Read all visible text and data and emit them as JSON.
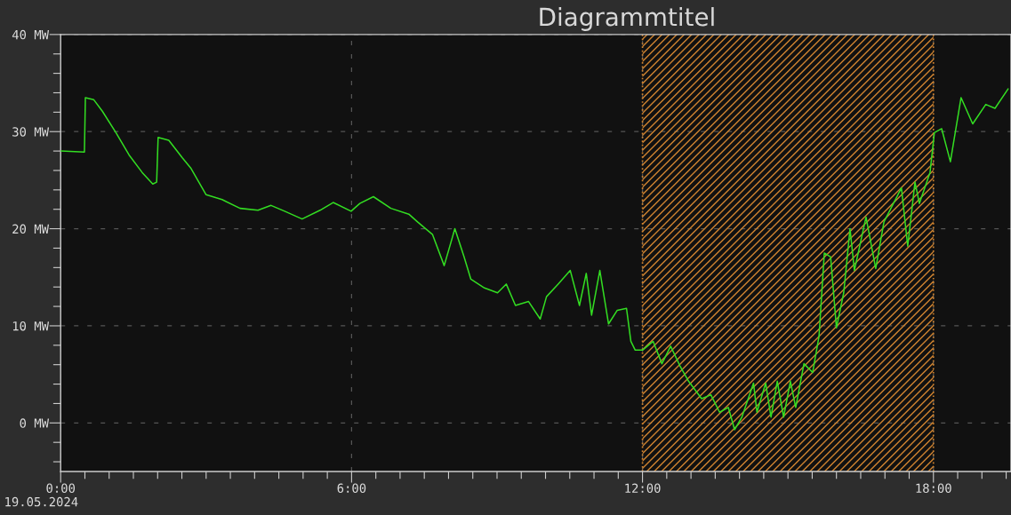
{
  "chart_data": {
    "type": "line",
    "title": "Diagrammtitel",
    "x": [
      0,
      0.49,
      0.51,
      0.68,
      0.86,
      1.14,
      1.41,
      1.68,
      1.9,
      1.98,
      2.01,
      2.23,
      2.51,
      2.69,
      3.0,
      3.33,
      3.7,
      4.07,
      4.34,
      4.62,
      4.98,
      5.35,
      5.62,
      5.99,
      6.17,
      6.45,
      6.81,
      7.18,
      7.36,
      7.67,
      7.91,
      8.13,
      8.32,
      8.46,
      8.74,
      9.01,
      9.19,
      9.38,
      9.65,
      9.89,
      10.02,
      10.26,
      10.51,
      10.7,
      10.84,
      10.95,
      11.12,
      11.3,
      11.48,
      11.67,
      11.76,
      11.85,
      12.0,
      12.22,
      12.4,
      12.58,
      12.77,
      12.95,
      13.22,
      13.41,
      13.59,
      13.77,
      13.9,
      14.05,
      14.29,
      14.36,
      14.54,
      14.65,
      14.78,
      14.91,
      15.05,
      15.16,
      15.33,
      15.51,
      15.64,
      15.75,
      15.88,
      16.0,
      16.15,
      16.28,
      16.37,
      16.61,
      16.81,
      16.98,
      17.34,
      17.47,
      17.62,
      17.71,
      17.93,
      18.02,
      18.17,
      18.35,
      18.57,
      18.81,
      19.08,
      19.27,
      19.54
    ],
    "series": [
      {
        "color": "#33dd22",
        "values": [
          28.0,
          27.9,
          33.5,
          33.3,
          32.1,
          29.9,
          27.6,
          25.8,
          24.6,
          24.8,
          29.4,
          29.1,
          27.3,
          26.2,
          23.5,
          23.0,
          22.1,
          21.9,
          22.4,
          21.8,
          21.0,
          21.9,
          22.7,
          21.8,
          22.6,
          23.3,
          22.1,
          21.5,
          20.7,
          19.4,
          16.2,
          20.0,
          17.1,
          14.8,
          13.9,
          13.4,
          14.3,
          12.1,
          12.5,
          10.7,
          13.0,
          14.3,
          15.7,
          12.1,
          15.4,
          11.1,
          15.7,
          10.2,
          11.6,
          11.8,
          8.4,
          7.5,
          7.5,
          8.4,
          6.1,
          7.9,
          5.9,
          4.3,
          2.5,
          2.9,
          1.1,
          1.6,
          -0.7,
          0.6,
          4.1,
          1.1,
          4.1,
          0.6,
          4.3,
          0.6,
          4.3,
          1.6,
          6.1,
          5.2,
          8.9,
          17.5,
          17.1,
          9.8,
          13.4,
          20.0,
          15.7,
          21.2,
          15.9,
          20.7,
          24.2,
          18.2,
          24.8,
          22.6,
          25.8,
          29.9,
          30.3,
          26.9,
          33.5,
          30.8,
          32.8,
          32.4,
          34.4
        ]
      }
    ],
    "xlim": [
      0,
      19.6
    ],
    "xticks": [
      {
        "value": 0,
        "label": "0:00"
      },
      {
        "value": 0.5,
        "label": null
      },
      {
        "value": 1,
        "label": null
      },
      {
        "value": 1.5,
        "label": null
      },
      {
        "value": 2,
        "label": null
      },
      {
        "value": 2.5,
        "label": null
      },
      {
        "value": 3,
        "label": null
      },
      {
        "value": 3.5,
        "label": null
      },
      {
        "value": 4,
        "label": null
      },
      {
        "value": 4.5,
        "label": null
      },
      {
        "value": 5,
        "label": null
      },
      {
        "value": 5.5,
        "label": null
      },
      {
        "value": 6,
        "label": "6:00"
      },
      {
        "value": 6.5,
        "label": null
      },
      {
        "value": 7,
        "label": null
      },
      {
        "value": 7.5,
        "label": null
      },
      {
        "value": 8,
        "label": null
      },
      {
        "value": 8.5,
        "label": null
      },
      {
        "value": 9,
        "label": null
      },
      {
        "value": 9.5,
        "label": null
      },
      {
        "value": 10,
        "label": null
      },
      {
        "value": 10.5,
        "label": null
      },
      {
        "value": 11,
        "label": null
      },
      {
        "value": 11.5,
        "label": null
      },
      {
        "value": 12,
        "label": "12:00"
      },
      {
        "value": 12.5,
        "label": null
      },
      {
        "value": 13,
        "label": null
      },
      {
        "value": 13.5,
        "label": null
      },
      {
        "value": 14,
        "label": null
      },
      {
        "value": 14.5,
        "label": null
      },
      {
        "value": 15,
        "label": null
      },
      {
        "value": 15.5,
        "label": null
      },
      {
        "value": 16,
        "label": null
      },
      {
        "value": 16.5,
        "label": null
      },
      {
        "value": 17,
        "label": null
      },
      {
        "value": 17.5,
        "label": null
      },
      {
        "value": 18,
        "label": "18:00"
      },
      {
        "value": 18.5,
        "label": null
      },
      {
        "value": 19,
        "label": null
      },
      {
        "value": 19.5,
        "label": null
      }
    ],
    "ylim": [
      -5,
      40
    ],
    "yticks": [
      {
        "value": -4,
        "label": null
      },
      {
        "value": -2,
        "label": null
      },
      {
        "value": 0,
        "label": "0 MW"
      },
      {
        "value": 2,
        "label": null
      },
      {
        "value": 4,
        "label": null
      },
      {
        "value": 6,
        "label": null
      },
      {
        "value": 8,
        "label": null
      },
      {
        "value": 10,
        "label": "10 MW"
      },
      {
        "value": 12,
        "label": null
      },
      {
        "value": 14,
        "label": null
      },
      {
        "value": 16,
        "label": null
      },
      {
        "value": 18,
        "label": null
      },
      {
        "value": 20,
        "label": "20 MW"
      },
      {
        "value": 22,
        "label": null
      },
      {
        "value": 24,
        "label": null
      },
      {
        "value": 26,
        "label": null
      },
      {
        "value": 28,
        "label": null
      },
      {
        "value": 30,
        "label": "30 MW"
      },
      {
        "value": 32,
        "label": null
      },
      {
        "value": 34,
        "label": null
      },
      {
        "value": 36,
        "label": null
      },
      {
        "value": 38,
        "label": null
      },
      {
        "value": 40,
        "label": "40 MW"
      }
    ],
    "bands": [
      {
        "axis": "x",
        "from": 12,
        "to": 18,
        "color": "#d0832f"
      }
    ],
    "annotations": [
      "19.05.2024"
    ],
    "grid": true,
    "marker": "none",
    "line_style": "solid"
  }
}
